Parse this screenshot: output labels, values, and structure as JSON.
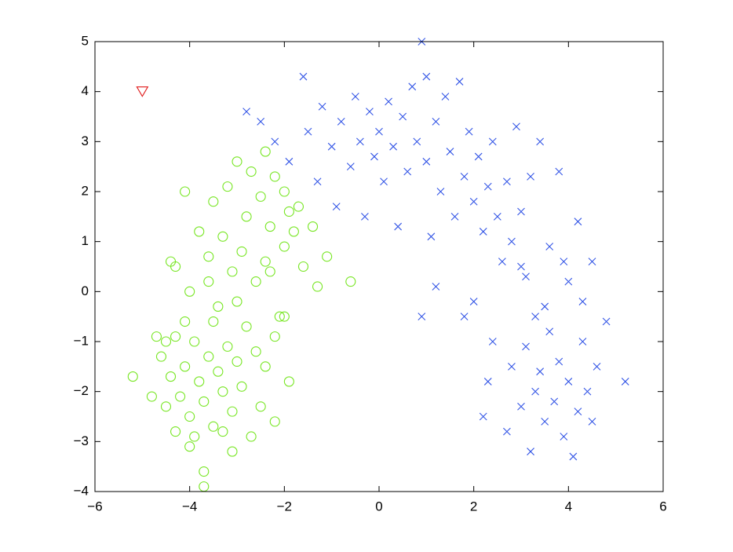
{
  "chart_data": {
    "type": "scatter",
    "xlim": [
      -6,
      6
    ],
    "ylim": [
      -4,
      5
    ],
    "xticks": [
      {
        "value": -6,
        "label": "−6"
      },
      {
        "value": -4,
        "label": "−4"
      },
      {
        "value": -2,
        "label": "−2"
      },
      0,
      2,
      4,
      6
    ],
    "yticks": [
      {
        "value": -4,
        "label": "−4"
      },
      {
        "value": -3,
        "label": "−3"
      },
      {
        "value": -2,
        "label": "−2"
      },
      {
        "value": -1,
        "label": "−1"
      },
      0,
      1,
      2,
      3,
      4,
      5
    ],
    "grid": false,
    "series": [
      {
        "color": "#3355e6",
        "marker": "x",
        "x": [
          -2.8,
          -2.5,
          -2.2,
          -1.9,
          -1.6,
          -1.5,
          -1.3,
          -1.2,
          -1.0,
          -0.9,
          -0.8,
          -0.6,
          -0.5,
          -0.4,
          -0.3,
          -0.2,
          -0.1,
          0.0,
          0.1,
          0.2,
          0.3,
          0.4,
          0.5,
          0.6,
          0.7,
          0.8,
          0.9,
          1.0,
          1.0,
          1.1,
          1.2,
          1.3,
          1.4,
          1.5,
          1.6,
          1.7,
          1.8,
          1.9,
          2.0,
          2.1,
          2.2,
          2.3,
          2.4,
          2.5,
          2.6,
          2.7,
          2.8,
          2.9,
          3.0,
          3.1,
          3.2,
          3.3,
          3.4,
          3.6,
          3.8,
          4.0,
          4.2,
          4.5,
          2.0,
          2.4,
          2.8,
          3.0,
          3.1,
          3.2,
          3.3,
          3.4,
          3.5,
          3.6,
          3.7,
          3.8,
          3.9,
          4.0,
          4.1,
          4.2,
          4.3,
          4.4,
          4.5,
          4.6,
          4.8,
          5.2,
          2.2,
          1.8,
          1.2,
          0.9,
          2.7,
          3.5,
          4.3,
          3.9,
          2.3,
          3.0
        ],
        "values": [
          3.6,
          3.4,
          3.0,
          2.6,
          4.3,
          3.2,
          2.2,
          3.7,
          2.9,
          1.7,
          3.4,
          2.5,
          3.9,
          3.0,
          1.5,
          3.6,
          2.7,
          3.2,
          2.2,
          3.8,
          2.9,
          1.3,
          3.5,
          2.4,
          4.1,
          3.0,
          5.0,
          4.3,
          2.6,
          1.1,
          3.4,
          2.0,
          3.9,
          2.8,
          1.5,
          4.2,
          2.3,
          3.2,
          1.8,
          2.7,
          1.2,
          2.1,
          3.0,
          1.5,
          0.6,
          2.2,
          1.0,
          3.3,
          1.6,
          0.3,
          2.3,
          -0.5,
          3.0,
          0.9,
          2.4,
          0.2,
          1.4,
          0.6,
          -0.2,
          -1.0,
          -1.5,
          -2.3,
          -1.1,
          -3.2,
          -2.0,
          -1.6,
          -2.6,
          -0.8,
          -2.2,
          -1.4,
          -2.9,
          -1.8,
          -3.3,
          -2.4,
          -1.0,
          -2.0,
          -2.6,
          -1.5,
          -0.6,
          -1.8,
          -2.5,
          -0.5,
          0.1,
          -0.5,
          -2.8,
          -0.3,
          -0.2,
          0.6,
          -1.8,
          0.5
        ]
      },
      {
        "color": "#77e622",
        "marker": "o",
        "x": [
          -2.4,
          -2.2,
          -2.0,
          -1.9,
          -1.7,
          -1.4,
          -1.1,
          -1.3,
          -0.6,
          -1.6,
          -2.0,
          -2.3,
          -2.5,
          -2.7,
          -2.8,
          -3.0,
          -3.2,
          -3.3,
          -3.5,
          -3.6,
          -3.8,
          -4.1,
          -4.3,
          -4.4,
          -4.0,
          -3.1,
          -2.9,
          -2.6,
          -2.3,
          -3.4,
          -2.1,
          -2.4,
          -2.2,
          -2.6,
          -2.8,
          -2.9,
          -3.0,
          -3.1,
          -3.2,
          -3.3,
          -3.4,
          -3.5,
          -3.6,
          -3.7,
          -3.8,
          -3.9,
          -4.0,
          -4.1,
          -4.2,
          -4.3,
          -4.4,
          -4.5,
          -4.6,
          -4.7,
          -4.8,
          -5.2,
          -4.3,
          -4.0,
          -3.7,
          -3.7,
          -3.1,
          -3.3,
          -2.5,
          -2.2,
          -1.9,
          -2.0,
          -3.5,
          -4.1,
          -3.0,
          -2.7,
          -3.9,
          -4.5,
          -3.6,
          -2.4,
          -1.8
        ],
        "values": [
          2.8,
          2.3,
          2.0,
          1.6,
          1.7,
          1.3,
          0.7,
          0.1,
          0.2,
          0.5,
          0.9,
          1.3,
          1.9,
          2.4,
          1.5,
          2.6,
          2.1,
          1.1,
          1.8,
          0.7,
          1.2,
          2.0,
          0.5,
          0.6,
          0.0,
          0.4,
          0.8,
          0.2,
          0.4,
          -0.3,
          -0.5,
          -1.5,
          -0.9,
          -1.2,
          -0.7,
          -1.9,
          -1.4,
          -2.4,
          -1.1,
          -2.0,
          -1.6,
          -2.7,
          -1.3,
          -2.2,
          -1.8,
          -1.0,
          -2.5,
          -1.5,
          -2.1,
          -0.9,
          -1.7,
          -2.3,
          -1.3,
          -0.9,
          -2.1,
          -1.7,
          -2.8,
          -3.1,
          -3.6,
          -3.9,
          -3.2,
          -2.8,
          -2.3,
          -2.6,
          -1.8,
          -0.5,
          -0.6,
          -0.6,
          -0.2,
          -2.9,
          -2.9,
          -1.0,
          0.2,
          0.6,
          1.2
        ]
      },
      {
        "color": "#e01818",
        "marker": "v",
        "x": [
          -5.0
        ],
        "values": [
          4.0
        ]
      }
    ]
  }
}
